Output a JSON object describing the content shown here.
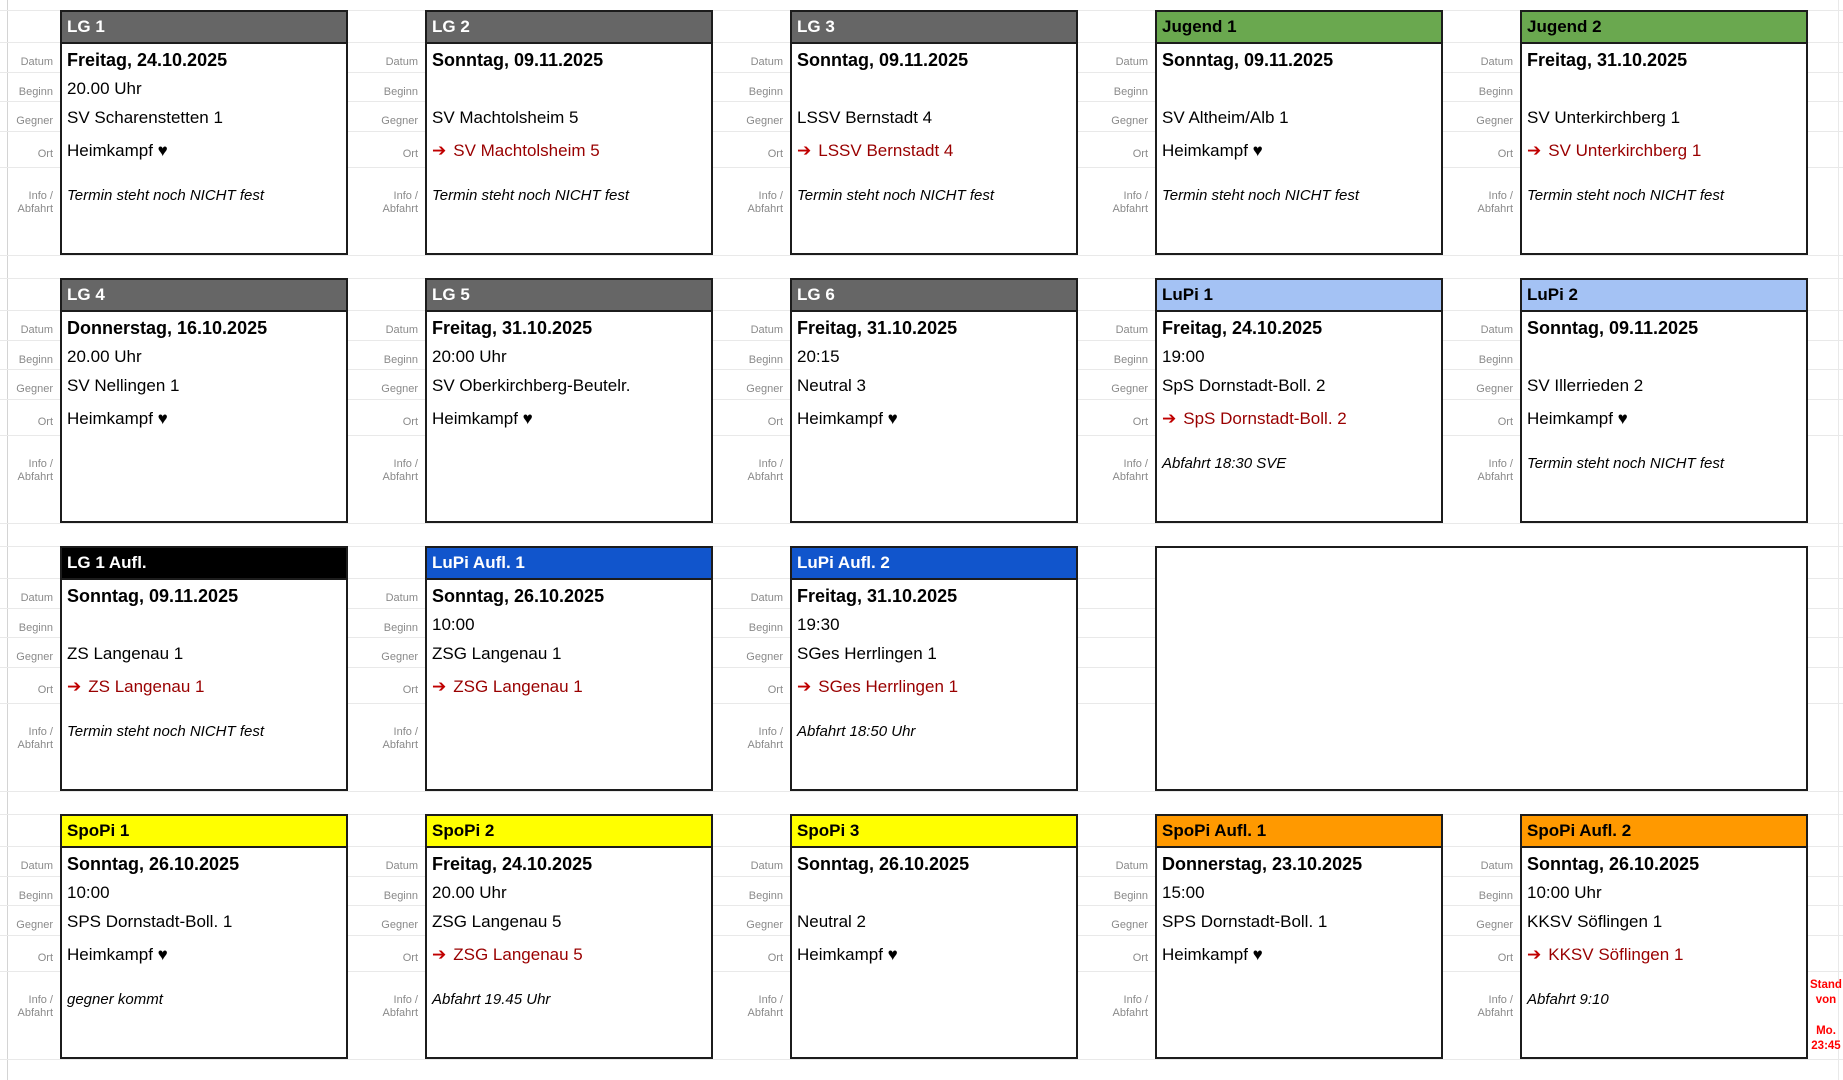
{
  "page": {
    "background": "#ffffff",
    "grid_color": "#e9e9e9",
    "away_text_color": "#990000",
    "away_arrow_color": "#c00000"
  },
  "glyphs": {
    "arrow": "➔",
    "heart": "♥"
  },
  "labels": {
    "datum": "Datum",
    "beginn": "Beginn",
    "gegner": "Gegner",
    "ort": "Ort",
    "info1": "Info /",
    "info2": "Abfahrt"
  },
  "footer": {
    "line1": "Stand von",
    "line2": "Mo. 23:45",
    "color": "#ff0000"
  },
  "cards": [
    {
      "row": 0,
      "col": 0,
      "title": "LG 1",
      "header_bg": "#666666",
      "header_fg": "#ffffff",
      "datum": "Freitag, 24.10.2025",
      "beginn": "20.00 Uhr",
      "gegner": "SV Scharenstetten 1",
      "ort": "Heimkampf ♥",
      "away": false,
      "info": "Termin steht noch NICHT fest"
    },
    {
      "row": 0,
      "col": 1,
      "title": "LG 2",
      "header_bg": "#666666",
      "header_fg": "#ffffff",
      "datum": "Sonntag, 09.11.2025",
      "beginn": "",
      "gegner": "SV Machtolsheim 5",
      "ort": "SV Machtolsheim 5",
      "away": true,
      "info": "Termin steht noch NICHT fest"
    },
    {
      "row": 0,
      "col": 2,
      "title": "LG 3",
      "header_bg": "#666666",
      "header_fg": "#ffffff",
      "datum": "Sonntag, 09.11.2025",
      "beginn": "",
      "gegner": "LSSV Bernstadt 4",
      "ort": "LSSV Bernstadt 4",
      "away": true,
      "info": "Termin steht noch NICHT fest"
    },
    {
      "row": 0,
      "col": 3,
      "title": "Jugend 1",
      "header_bg": "#6aa84f",
      "header_fg": "#000000",
      "datum": "Sonntag, 09.11.2025",
      "beginn": "",
      "gegner": "SV Altheim/Alb 1",
      "ort": "Heimkampf ♥",
      "away": false,
      "info": "Termin steht noch NICHT fest"
    },
    {
      "row": 0,
      "col": 4,
      "title": "Jugend 2",
      "header_bg": "#6aa84f",
      "header_fg": "#000000",
      "datum": "Freitag, 31.10.2025",
      "beginn": "",
      "gegner": "SV Unterkirchberg 1",
      "ort": "SV Unterkirchberg 1",
      "away": true,
      "info": "Termin steht noch NICHT fest"
    },
    {
      "row": 1,
      "col": 0,
      "title": "LG 4",
      "header_bg": "#666666",
      "header_fg": "#ffffff",
      "datum": "Donnerstag, 16.10.2025",
      "beginn": "20.00 Uhr",
      "gegner": "SV Nellingen 1",
      "ort": "Heimkampf ♥",
      "away": false,
      "info": ""
    },
    {
      "row": 1,
      "col": 1,
      "title": "LG 5",
      "header_bg": "#666666",
      "header_fg": "#ffffff",
      "datum": "Freitag, 31.10.2025",
      "beginn": "20:00 Uhr",
      "gegner": "SV Oberkirchberg-Beutelr.",
      "ort": "Heimkampf ♥",
      "away": false,
      "info": ""
    },
    {
      "row": 1,
      "col": 2,
      "title": "LG 6",
      "header_bg": "#666666",
      "header_fg": "#ffffff",
      "datum": "Freitag, 31.10.2025",
      "beginn": "20:15",
      "gegner": "Neutral 3",
      "ort": "Heimkampf ♥",
      "away": false,
      "info": ""
    },
    {
      "row": 1,
      "col": 3,
      "title": "LuPi 1",
      "header_bg": "#a4c2f4",
      "header_fg": "#000000",
      "datum": "Freitag, 24.10.2025",
      "beginn": "19:00",
      "gegner": "SpS Dornstadt-Boll. 2",
      "ort": "SpS Dornstadt-Boll. 2",
      "away": true,
      "info": "Abfahrt 18:30 SVE"
    },
    {
      "row": 1,
      "col": 4,
      "title": "LuPi 2",
      "header_bg": "#a4c2f4",
      "header_fg": "#000000",
      "datum": "Sonntag, 09.11.2025",
      "beginn": "",
      "gegner": "SV Illerrieden 2",
      "ort": "Heimkampf ♥",
      "away": false,
      "info": "Termin steht noch NICHT fest"
    },
    {
      "row": 2,
      "col": 0,
      "title": "LG 1 Aufl.",
      "header_bg": "#000000",
      "header_fg": "#ffffff",
      "datum": "Sonntag, 09.11.2025",
      "beginn": "",
      "gegner": "ZS Langenau 1",
      "ort": "ZS Langenau 1",
      "away": true,
      "info": "Termin steht noch NICHT fest"
    },
    {
      "row": 2,
      "col": 1,
      "title": "LuPi Aufl. 1",
      "header_bg": "#1155cc",
      "header_fg": "#ffffff",
      "datum": "Sonntag, 26.10.2025",
      "beginn": "10:00",
      "gegner": "ZSG Langenau 1",
      "ort": "ZSG Langenau 1",
      "away": true,
      "info": ""
    },
    {
      "row": 2,
      "col": 2,
      "title": "LuPi Aufl. 2",
      "header_bg": "#1155cc",
      "header_fg": "#ffffff",
      "datum": "Freitag, 31.10.2025",
      "beginn": "19:30",
      "gegner": "SGes Herrlingen 1",
      "ort": "SGes Herrlingen 1",
      "away": true,
      "info": "Abfahrt 18:50 Uhr"
    },
    {
      "row": 3,
      "col": 0,
      "title": "SpoPi 1",
      "header_bg": "#ffff00",
      "header_fg": "#000000",
      "datum": "Sonntag, 26.10.2025",
      "beginn": "10:00",
      "gegner": "SPS Dornstadt-Boll. 1",
      "ort": "Heimkampf ♥",
      "away": false,
      "info": "gegner kommt"
    },
    {
      "row": 3,
      "col": 1,
      "title": "SpoPi 2",
      "header_bg": "#ffff00",
      "header_fg": "#000000",
      "datum": "Freitag, 24.10.2025",
      "beginn": "20.00 Uhr",
      "gegner": "ZSG Langenau 5",
      "ort": "ZSG Langenau 5",
      "away": true,
      "info": "Abfahrt 19.45 Uhr"
    },
    {
      "row": 3,
      "col": 2,
      "title": "SpoPi 3",
      "header_bg": "#ffff00",
      "header_fg": "#000000",
      "datum": "Sonntag, 26.10.2025",
      "beginn": "",
      "gegner": "Neutral 2",
      "ort": "Heimkampf ♥",
      "away": false,
      "info": ""
    },
    {
      "row": 3,
      "col": 3,
      "title": "SpoPi Aufl. 1",
      "header_bg": "#ff9900",
      "header_fg": "#000000",
      "datum": "Donnerstag, 23.10.2025",
      "beginn": "15:00",
      "gegner": "SPS Dornstadt-Boll. 1",
      "ort": "Heimkampf ♥",
      "away": false,
      "info": ""
    },
    {
      "row": 3,
      "col": 4,
      "title": "SpoPi Aufl. 2",
      "header_bg": "#ff9900",
      "header_fg": "#000000",
      "datum": "Sonntag, 26.10.2025",
      "beginn": "10:00 Uhr",
      "gegner": "KKSV Söflingen 1",
      "ort": "KKSV Söflingen 1",
      "away": true,
      "info": "Abfahrt 9:10"
    }
  ],
  "empty_panel": {
    "row": 2,
    "col": 3,
    "span": 2
  }
}
